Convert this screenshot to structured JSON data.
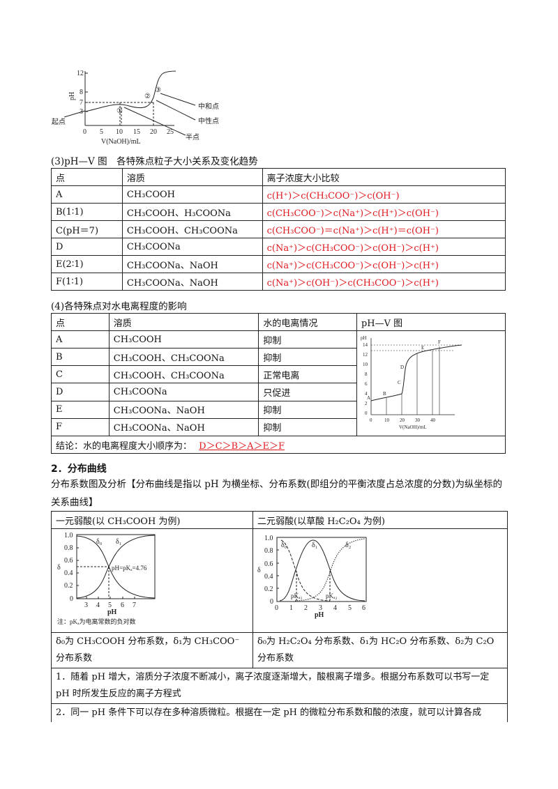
{
  "fig1": {
    "y_label": "pH",
    "x_label": "V(NaOH)/mL",
    "y_ticks": [
      "12",
      "8",
      "7",
      "3"
    ],
    "x_ticks": [
      "0",
      "5",
      "10",
      "15",
      "20",
      "25"
    ],
    "markers": [
      "①",
      "②",
      "③"
    ],
    "callouts": [
      "起点",
      "中和点",
      "中性点",
      "半点"
    ]
  },
  "section3": {
    "title": "(3)pH—V 图　各特殊点粒子大小关系及变化趋势",
    "headers": [
      "点",
      "溶质",
      "离子浓度大小比较"
    ],
    "rows": [
      {
        "point": "A",
        "solute": "CH₃COOH",
        "compare": "c(H⁺)＞c(CH₃COO⁻)＞c(OH⁻)"
      },
      {
        "point": "B(1∶1)",
        "solute": "CH₃COOH、H₃COONa",
        "compare": "c(CH₃COO⁻)＞c(Na⁺)＞c(H⁺)＞c(OH⁻)"
      },
      {
        "point": "C(pH＝7)",
        "solute": "CH₃COOH、CH₃COONa",
        "compare": "c(CH₃COO⁻)＝c(Na⁺)＞c(H⁺)＝c(OH⁻)"
      },
      {
        "point": "D",
        "solute": "CH₃COONa",
        "compare": "c(Na⁺)＞c(CH₃COO⁻)＞c(OH⁻)＞c(H⁺)"
      },
      {
        "point": "E(2∶1)",
        "solute": "CH₃COONa、NaOH",
        "compare": "c(Na⁺)＞c(CH₃COO⁻)＞c(OH⁻)＞c(H⁺)"
      },
      {
        "point": "F(1∶1)",
        "solute": "CH₃COONa、NaOH",
        "compare": "c(Na⁺)＞c(OH⁻)＞c(CH₃COO⁻)＞c(H⁺)"
      }
    ]
  },
  "section4": {
    "title": "(4)各特殊点对水电离程度的影响",
    "headers": [
      "点",
      "溶质",
      "水的电离情况",
      "pH—V 图"
    ],
    "rows": [
      {
        "point": "A",
        "solute": "CH₃COOH",
        "effect": "抑制"
      },
      {
        "point": "B",
        "solute": "CH₃COOH、CH₃COONa",
        "effect": "抑制"
      },
      {
        "point": "C",
        "solute": "CH₃COOH、CH₃COONa",
        "effect": "正常电离"
      },
      {
        "point": "D",
        "solute": "CH₃COONa",
        "effect": "只促进"
      },
      {
        "point": "E",
        "solute": "CH₃COONa、NaOH",
        "effect": "抑制"
      },
      {
        "point": "F",
        "solute": "CH₃COONa、NaOH",
        "effect": "抑制"
      }
    ],
    "conclusion_label": "结论：水的电离程度大小顺序为：",
    "conclusion_answer": "D＞C＞B＞A＞E＞F",
    "mini_chart": {
      "y_label": "pH",
      "x_label": "V(NaOH)/mL",
      "y_ticks": [
        "14",
        "12",
        "10",
        "8",
        "6",
        "4",
        "2",
        "0"
      ],
      "x_ticks": [
        "0",
        "10",
        "20",
        "30",
        "40"
      ],
      "point_labels": [
        "A",
        "B",
        "C",
        "D",
        "E",
        "F"
      ]
    }
  },
  "section2": {
    "heading": "2．分布曲线",
    "intro": "分布系数图及分析【分布曲线是指以 pH 为横坐标、分布系数(即组分的平衡浓度占总浓度的分数)为纵坐标的关系曲线】",
    "col1_title": "一元弱酸(以 CH₃COOH 为例)",
    "col2_title": "二元弱酸(以草酸 H₂C₂O₄ 为例)",
    "chart1": {
      "y_label": "δ",
      "x_label": "pH",
      "y_ticks": [
        "1.0",
        "0.8",
        "0.6",
        "0.4",
        "0.2",
        "0"
      ],
      "x_ticks": [
        "3",
        "4",
        "5",
        "6",
        "7"
      ],
      "series_labels": [
        "δ₀",
        "δ₁"
      ],
      "annotation": "pH=pKₐ=4.76",
      "note": "注：pKₐ为电离常数的负对数"
    },
    "chart2": {
      "y_label": "δ",
      "x_label": "pH",
      "y_ticks": [
        "1.0",
        "0.8",
        "0.6",
        "0.4",
        "0.2",
        "0"
      ],
      "x_ticks": [
        "0",
        "1",
        "2",
        "3",
        "4",
        "5",
        "6"
      ],
      "series_labels": [
        "δ₀",
        "δ₁",
        "δ₂"
      ],
      "annotations": [
        "pKₐ₁",
        "pKₐ₂"
      ]
    },
    "col1_desc": "δ₀为 CH₃COOH 分布系数，δ₁为 CH₃COO⁻分布系数",
    "col2_desc": "δ₀为 H₂C₂O₄ 分布系数、δ₁为 HC₂O 分布系数、δ₂为 C₂O 分布系数",
    "point1": "1．随着 pH 增大，溶质分子浓度不断减小，离子浓度逐渐增大，酸根离子增多。根据分布系数可以书写一定 pH 时所发生反应的离子方程式",
    "point2": "2．同一 pH 条件下可以存在多种溶质微粒。根据在一定 pH 的微粒分布系数和酸的浓度，就可以计算各成"
  }
}
